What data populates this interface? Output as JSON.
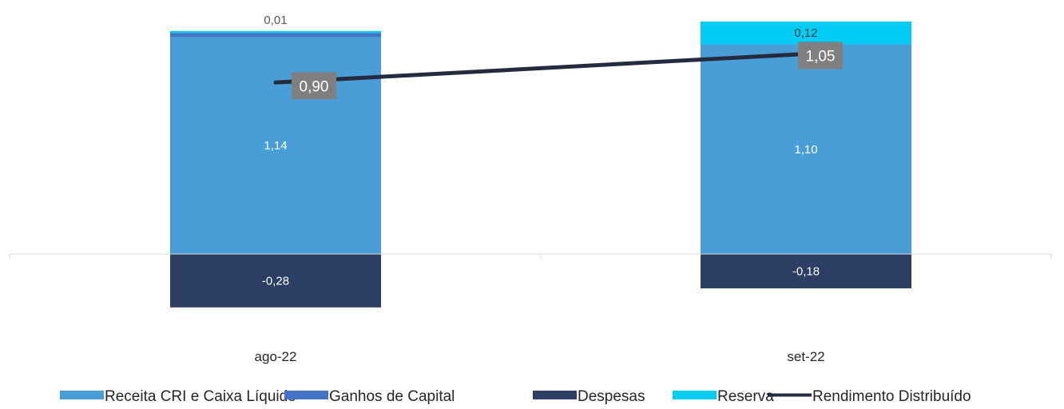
{
  "chart_data": {
    "type": "bar",
    "stacked": true,
    "categories": [
      "ago-22",
      "set-22"
    ],
    "series": [
      {
        "name": "Receita CRI e Caixa Líquido",
        "values": [
          1.14,
          1.1
        ],
        "labels": [
          "1,14",
          "1,10"
        ],
        "color": "#4A9ED8"
      },
      {
        "name": "Ganhos de Capital",
        "values": [
          0.02,
          0.0
        ],
        "labels": [
          "",
          ""
        ],
        "color": "#4472C4"
      },
      {
        "name": "Despesas",
        "values": [
          -0.28,
          -0.18
        ],
        "labels": [
          "-0,28",
          "-0,18"
        ],
        "color": "#2C3E64"
      },
      {
        "name": "Reserva",
        "values": [
          0.01,
          0.12
        ],
        "labels": [
          "0,01",
          "0,12"
        ],
        "color": "#00CCF5"
      }
    ],
    "line_series": {
      "name": "Rendimento Distribuído",
      "values": [
        0.9,
        1.05
      ],
      "labels": [
        "0,90",
        "1,05"
      ],
      "color": "#252B3F"
    },
    "ylim": [
      -0.45,
      1.3
    ],
    "grid": false,
    "legend_position": "bottom"
  }
}
